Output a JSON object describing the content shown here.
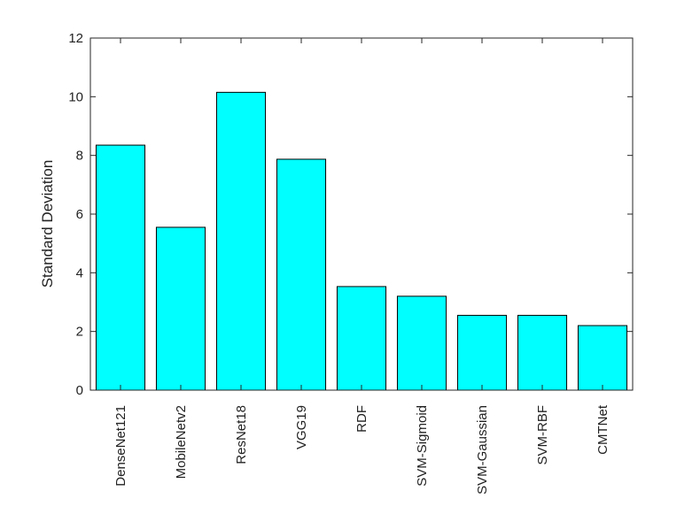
{
  "chart_data": {
    "type": "bar",
    "categories": [
      "DenseNet121",
      "MobileNetv2",
      "ResNet18",
      "VGG19",
      "RDF",
      "SVM-Sigmoid",
      "SVM-Gaussian",
      "SVM-RBF",
      "CMTNet"
    ],
    "values": [
      8.35,
      5.55,
      10.15,
      7.87,
      3.53,
      3.2,
      2.55,
      2.55,
      2.2
    ],
    "ylabel": "Standard Deviation",
    "ylim": [
      0,
      12
    ],
    "yticks": [
      0,
      2,
      4,
      6,
      8,
      10,
      12
    ],
    "grid": false,
    "colors": {
      "bar_fill": "#00ffff",
      "bar_stroke": "#000000"
    }
  }
}
